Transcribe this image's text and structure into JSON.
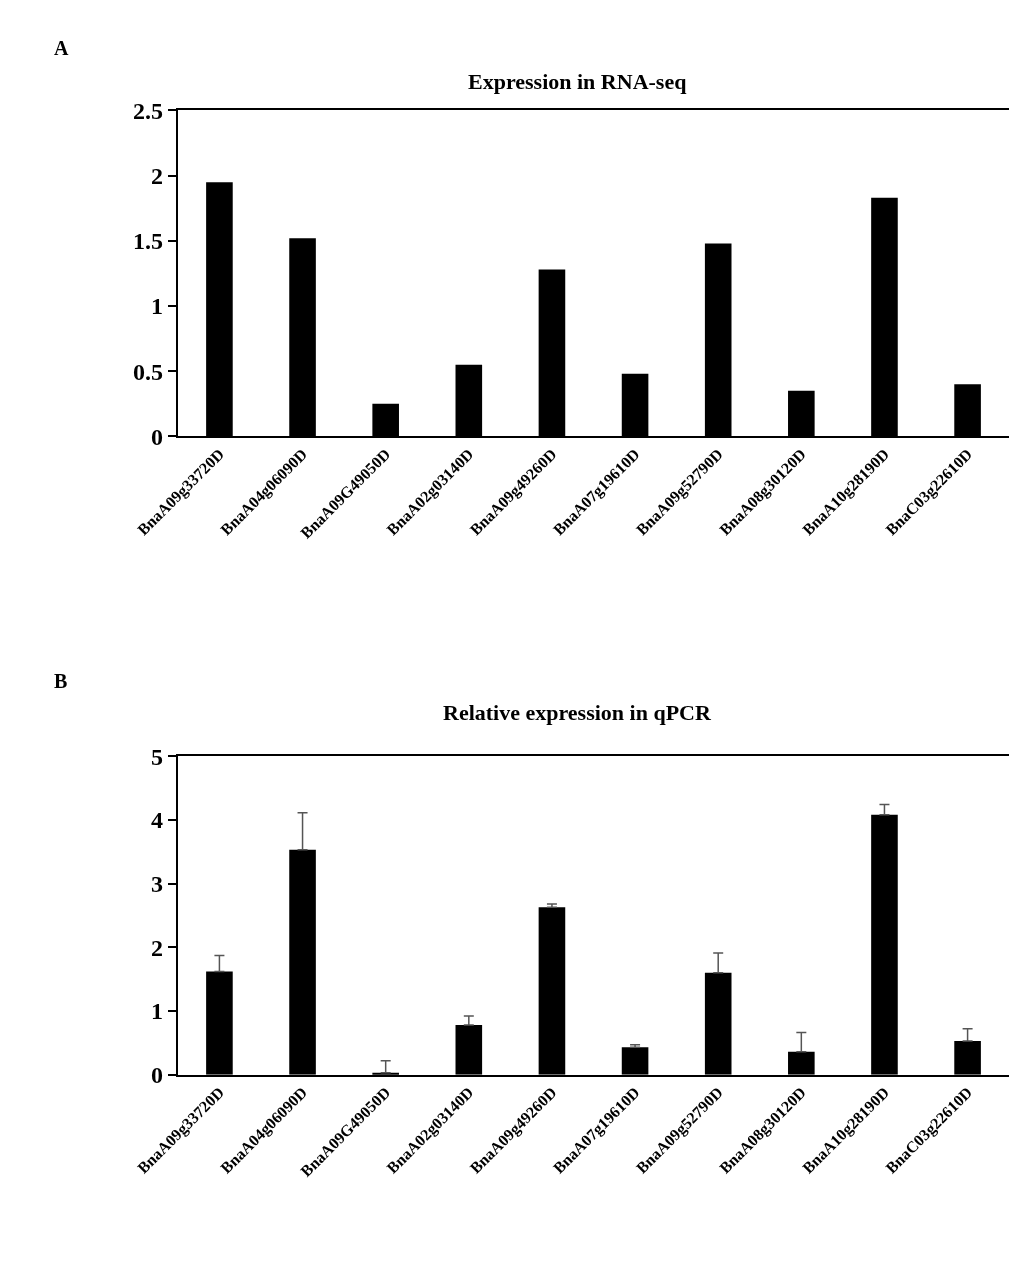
{
  "chart_data": [
    {
      "type": "bar",
      "title": "Expression in RNA-seq",
      "subtitle": "A",
      "categories": [
        "BnaA09g33720D",
        "BnaA04g06090D",
        "BnaA09G49050D",
        "BnaA02g03140D",
        "BnaA09g49260D",
        "BnaA07g19610D",
        "BnaA09g52790D",
        "BnaA08g30120D",
        "BnaA10g28190D",
        "BnaC03g22610D"
      ],
      "values": [
        1.95,
        1.52,
        0.25,
        0.55,
        1.28,
        0.48,
        1.48,
        0.35,
        1.83,
        0.4
      ],
      "color": "#000000",
      "ylim": [
        0,
        2.5
      ],
      "yticks": [
        0,
        0.5,
        1,
        1.5,
        2,
        2.5
      ]
    },
    {
      "type": "bar",
      "title": "Relative expression in qPCR",
      "subtitle": "B",
      "categories": [
        "BnaA09g33720D",
        "BnaA04g06090D",
        "BnaA09G49050D",
        "BnaA02g03140D",
        "BnaA09g49260D",
        "BnaA07g19610D",
        "BnaA09g52790D",
        "BnaA08g30120D",
        "BnaA10g28190D",
        "BnaC03g22610D"
      ],
      "values": [
        1.62,
        3.53,
        0.03,
        0.78,
        2.63,
        0.43,
        1.6,
        0.36,
        4.08,
        0.53
      ],
      "errors": [
        [
          1.62,
          1.87
        ],
        [
          3.53,
          4.11
        ],
        [
          0.03,
          0.22
        ],
        [
          0.78,
          0.92
        ],
        [
          2.63,
          2.68
        ],
        [
          0.43,
          0.47
        ],
        [
          1.6,
          1.91
        ],
        [
          0.36,
          0.66
        ],
        [
          4.08,
          4.24
        ],
        [
          0.53,
          0.72
        ]
      ],
      "color": "#000000",
      "ylim": [
        0,
        5
      ],
      "yticks": [
        0,
        1,
        2,
        3,
        4,
        5
      ]
    }
  ]
}
